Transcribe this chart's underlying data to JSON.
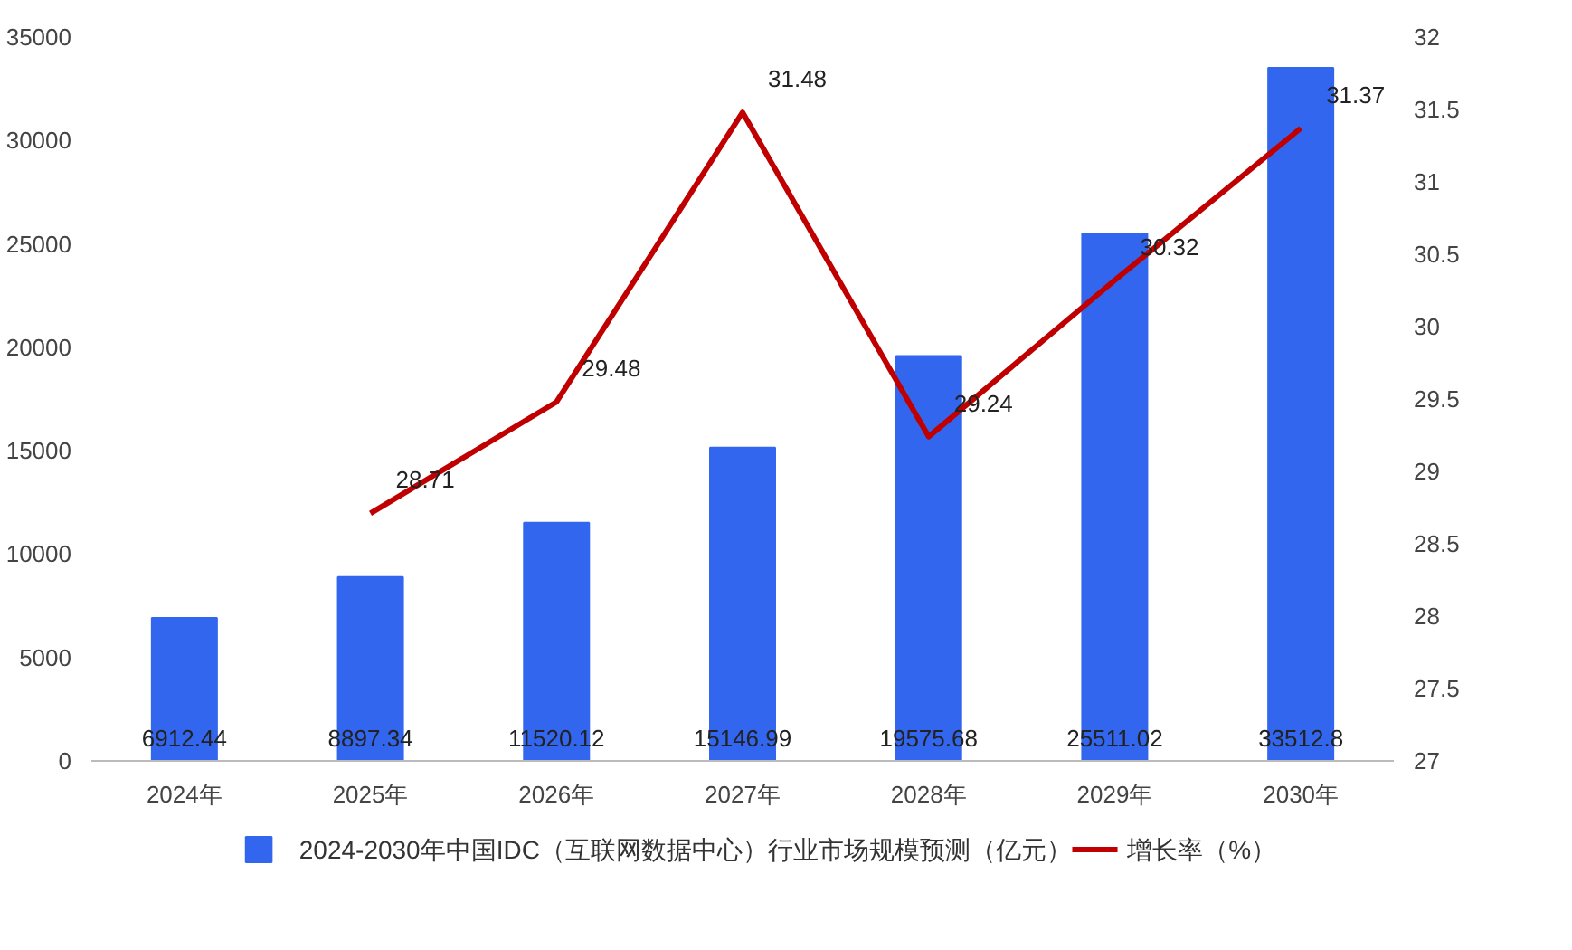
{
  "chart_data": {
    "type": "bar",
    "categories": [
      "2024年",
      "2025年",
      "2026年",
      "2027年",
      "2028年",
      "2029年",
      "2030年"
    ],
    "series": [
      {
        "name": "2024-2030年中国IDC（互联网数据中心）行业市场规模预测（亿元）",
        "color": "#3366ee",
        "values": [
          6912.44,
          8897.34,
          11520.12,
          15146.99,
          19575.68,
          25511.02,
          33512.8
        ]
      },
      {
        "name": "增长率（%）",
        "type": "line",
        "axis": "y2",
        "color": "#c00000",
        "values": [
          null,
          28.71,
          29.48,
          31.48,
          29.24,
          30.32,
          31.37
        ]
      }
    ],
    "ylim": [
      0,
      35000
    ],
    "yticks": [
      0,
      5000,
      10000,
      15000,
      20000,
      25000,
      30000,
      35000
    ],
    "y2lim": [
      27,
      32
    ],
    "y2ticks": [
      27,
      27.5,
      28,
      28.5,
      29,
      29.5,
      30,
      30.5,
      31,
      31.5,
      32
    ],
    "data_labels": true,
    "legend": "bottom"
  }
}
